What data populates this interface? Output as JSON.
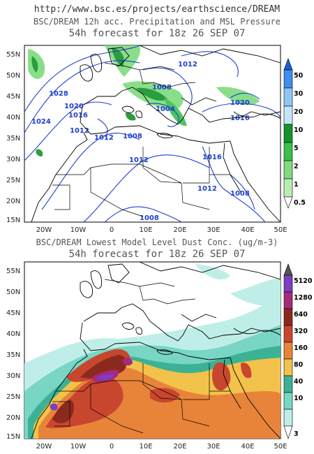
{
  "header": {
    "url": "http://www.bsc.es/projects/earthscience/DREAM"
  },
  "panel_precip": {
    "title_line1": "BSC/DREAM 12h acc. Precipitation and MSL Pressure",
    "title_line2": "54h forecast for 18z 26 SEP 07",
    "isobar_labels": [
      "1012",
      "1008",
      "1028",
      "1020",
      "1016",
      "1004",
      "1012",
      "1012",
      "1024",
      "1008",
      "1020",
      "1016",
      "1012",
      "1016",
      "1012",
      "1008",
      "1008"
    ],
    "colorbar_labels": [
      "50",
      "30",
      "20",
      "10",
      "5",
      "2",
      "1",
      "0.5"
    ],
    "colorbar_colors": [
      "#1a5fd6",
      "#3d8ff0",
      "#8fc6f5",
      "#c6e6f8",
      "#14932a",
      "#3cbf4c",
      "#7edb7e",
      "#b9ecb3"
    ]
  },
  "panel_dust": {
    "title_line1": "BSC/DREAM Lowest Model Level Dust Conc. (ug/m-3)",
    "title_line2": "54h forecast for 18z 26 SEP 07",
    "colorbar_labels": [
      "5120",
      "1280",
      "640",
      "320",
      "160",
      "80",
      "40",
      "10",
      "3"
    ],
    "colorbar_colors": [
      "#7b3fbf",
      "#a8287a",
      "#8a2a1e",
      "#c8462e",
      "#e8843a",
      "#f2c24a",
      "#3cb295",
      "#79d6c4",
      "#bfeee8"
    ]
  },
  "axes": {
    "lat_labels": [
      "55N",
      "50N",
      "45N",
      "40N",
      "35N",
      "30N",
      "25N",
      "20N",
      "15N"
    ],
    "lon_labels": [
      "20W",
      "10W",
      "0",
      "10E",
      "20E",
      "30E",
      "40E",
      "50E"
    ]
  }
}
